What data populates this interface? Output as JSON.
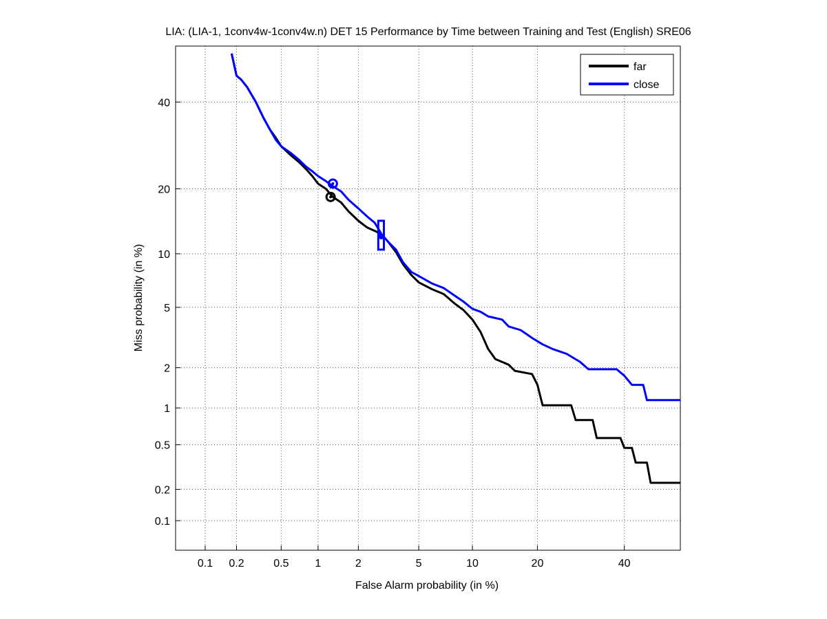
{
  "chart_data": {
    "type": "line",
    "title": "LIA: (LIA-1, 1conv4w-1conv4w.n) DET 15 Performance by Time between Training and Test (English) SRE06",
    "xlabel": "False Alarm probability (in %)",
    "ylabel": "Miss probability (in %)",
    "scale": "normal-deviate (probit)",
    "xlim": [
      0.05,
      55
    ],
    "ylim": [
      0.05,
      55
    ],
    "x_ticks": [
      0.1,
      0.2,
      0.5,
      1,
      2,
      5,
      10,
      20,
      40
    ],
    "x_tick_labels": [
      "0.1",
      "0.2",
      "0.5",
      "1",
      "2",
      "5",
      "10",
      "20",
      "40"
    ],
    "y_ticks": [
      0.1,
      0.2,
      0.5,
      1,
      2,
      5,
      10,
      20,
      40
    ],
    "y_tick_labels": [
      "0.1",
      "0.2",
      "0.5",
      "1",
      "2",
      "5",
      "10",
      "20",
      "40"
    ],
    "grid": true,
    "legend_position": "top-right",
    "series": [
      {
        "name": "far",
        "color": "#000000",
        "points": [
          [
            0.18,
            53
          ],
          [
            0.2,
            47
          ],
          [
            0.22,
            46
          ],
          [
            0.25,
            44
          ],
          [
            0.3,
            40
          ],
          [
            0.35,
            36
          ],
          [
            0.4,
            33
          ],
          [
            0.45,
            31
          ],
          [
            0.5,
            29
          ],
          [
            0.6,
            27
          ],
          [
            0.7,
            25.5
          ],
          [
            0.8,
            24
          ],
          [
            0.9,
            22.5
          ],
          [
            1.0,
            21
          ],
          [
            1.15,
            20
          ],
          [
            1.3,
            18.5
          ],
          [
            1.5,
            17.5
          ],
          [
            1.7,
            16
          ],
          [
            2.0,
            14.5
          ],
          [
            2.3,
            13.5
          ],
          [
            2.6,
            13
          ],
          [
            2.9,
            12.5
          ],
          [
            3.2,
            11.5
          ],
          [
            3.6,
            10.2
          ],
          [
            4.0,
            8.8
          ],
          [
            4.5,
            7.7
          ],
          [
            5.0,
            7.0
          ],
          [
            6.0,
            6.4
          ],
          [
            7.0,
            6.0
          ],
          [
            8.0,
            5.3
          ],
          [
            9.0,
            4.8
          ],
          [
            10.0,
            4.2
          ],
          [
            11.0,
            3.5
          ],
          [
            12.0,
            2.7
          ],
          [
            13.0,
            2.3
          ],
          [
            15.0,
            2.1
          ],
          [
            16.0,
            1.9
          ],
          [
            19.0,
            1.8
          ],
          [
            20.0,
            1.5
          ],
          [
            21.0,
            1.05
          ],
          [
            27.0,
            1.05
          ],
          [
            28.0,
            0.8
          ],
          [
            32.0,
            0.8
          ],
          [
            33.0,
            0.57
          ],
          [
            39.0,
            0.57
          ],
          [
            40.0,
            0.47
          ],
          [
            42.0,
            0.47
          ],
          [
            43.0,
            0.35
          ],
          [
            46.0,
            0.35
          ],
          [
            47.0,
            0.23
          ],
          [
            55.0,
            0.23
          ]
        ],
        "marker_point": [
          1.25,
          18.5
        ]
      },
      {
        "name": "close",
        "color": "#0000ff",
        "points": [
          [
            0.18,
            53
          ],
          [
            0.2,
            47
          ],
          [
            0.22,
            46
          ],
          [
            0.25,
            44
          ],
          [
            0.3,
            40
          ],
          [
            0.35,
            36
          ],
          [
            0.4,
            33
          ],
          [
            0.45,
            30.5
          ],
          [
            0.5,
            29
          ],
          [
            0.6,
            27.5
          ],
          [
            0.7,
            26
          ],
          [
            0.8,
            24.5
          ],
          [
            0.9,
            23.5
          ],
          [
            1.0,
            22.5
          ],
          [
            1.15,
            21.5
          ],
          [
            1.3,
            20.5
          ],
          [
            1.5,
            19.5
          ],
          [
            1.7,
            18
          ],
          [
            2.0,
            16.5
          ],
          [
            2.3,
            15.2
          ],
          [
            2.6,
            14.2
          ],
          [
            2.9,
            12.5
          ],
          [
            3.2,
            11.5
          ],
          [
            3.6,
            10.5
          ],
          [
            4.0,
            9.0
          ],
          [
            4.5,
            8.0
          ],
          [
            5.0,
            7.6
          ],
          [
            6.0,
            6.9
          ],
          [
            7.0,
            6.5
          ],
          [
            8.0,
            5.9
          ],
          [
            9.0,
            5.4
          ],
          [
            10.0,
            4.9
          ],
          [
            11.0,
            4.7
          ],
          [
            12.0,
            4.4
          ],
          [
            14.0,
            4.2
          ],
          [
            15.0,
            3.8
          ],
          [
            17.0,
            3.6
          ],
          [
            19.0,
            3.2
          ],
          [
            21.0,
            2.9
          ],
          [
            23.0,
            2.7
          ],
          [
            26.0,
            2.5
          ],
          [
            29.0,
            2.2
          ],
          [
            31.0,
            1.95
          ],
          [
            38.0,
            1.95
          ],
          [
            40.0,
            1.75
          ],
          [
            42.0,
            1.5
          ],
          [
            45.0,
            1.5
          ],
          [
            46.0,
            1.15
          ],
          [
            55.0,
            1.15
          ]
        ],
        "marker_point": [
          1.3,
          21
        ],
        "confidence_box": {
          "x": [
            2.75,
            3.0
          ],
          "y": [
            10.5,
            14.5
          ],
          "center": [
            2.88,
            12.2
          ]
        }
      }
    ]
  }
}
